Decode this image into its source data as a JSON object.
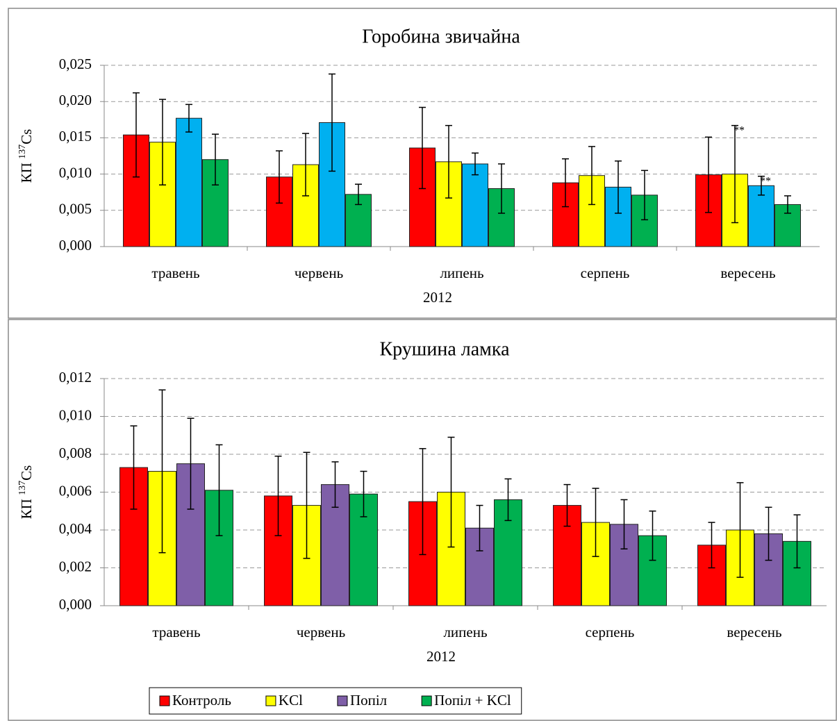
{
  "chart_data": [
    {
      "type": "bar",
      "title": "Горобина звичайна",
      "y_label_parts": [
        "КП ",
        "137",
        "Cs"
      ],
      "x_label": "2012",
      "categories": [
        "травень",
        "червень",
        "липень",
        "серпень",
        "вересень"
      ],
      "series": [
        {
          "color": "#ff0000",
          "values": [
            0.0154,
            0.0096,
            0.0136,
            0.0088,
            0.0099
          ],
          "errors": [
            0.0058,
            0.0036,
            0.0056,
            0.0033,
            0.0052
          ]
        },
        {
          "color": "#ffff00",
          "values": [
            0.0144,
            0.0113,
            0.0117,
            0.0098,
            0.01
          ],
          "errors": [
            0.0059,
            0.0043,
            0.005,
            0.004,
            0.0067
          ]
        },
        {
          "color": "#00b0f0",
          "values": [
            0.0177,
            0.0171,
            0.0114,
            0.0082,
            0.0084
          ],
          "errors": [
            0.0019,
            0.0067,
            0.0015,
            0.0036,
            0.0013
          ]
        },
        {
          "color": "#00b050",
          "values": [
            0.012,
            0.0072,
            0.008,
            0.0071,
            0.0058
          ],
          "errors": [
            0.0035,
            0.0014,
            0.0034,
            0.0034,
            0.0012
          ]
        }
      ],
      "annotations": [
        {
          "text": "**",
          "category": 4,
          "series": 1
        },
        {
          "text": "**",
          "category": 4,
          "series": 2
        }
      ],
      "ylim": [
        0,
        0.025
      ],
      "yticks": [
        {
          "value": 0,
          "label": "0,000"
        },
        {
          "value": 0.005,
          "label": "0,005"
        },
        {
          "value": 0.01,
          "label": "0,010"
        },
        {
          "value": 0.015,
          "label": "0,015"
        },
        {
          "value": 0.02,
          "label": "0,020"
        },
        {
          "value": 0.025,
          "label": "0,025"
        }
      ],
      "grid": true
    },
    {
      "type": "bar",
      "title": "Крушина ламка",
      "y_label_parts": [
        "КП ",
        "137",
        "Cs"
      ],
      "x_label": "2012",
      "categories": [
        "травень",
        "червень",
        "липень",
        "серпень",
        "вересень"
      ],
      "series": [
        {
          "name": "Контроль",
          "color": "#ff0000",
          "values": [
            0.0073,
            0.0058,
            0.0055,
            0.0053,
            0.0032
          ],
          "errors": [
            0.0022,
            0.0021,
            0.0028,
            0.0011,
            0.0012
          ]
        },
        {
          "name": "KCl",
          "color": "#ffff00",
          "values": [
            0.0071,
            0.0053,
            0.006,
            0.0044,
            0.004
          ],
          "errors": [
            0.0043,
            0.0028,
            0.0029,
            0.0018,
            0.0025
          ]
        },
        {
          "name": "Попіл",
          "color": "#7f5fa8",
          "values": [
            0.0075,
            0.0064,
            0.0041,
            0.0043,
            0.0038
          ],
          "errors": [
            0.0024,
            0.0012,
            0.0012,
            0.0013,
            0.0014
          ]
        },
        {
          "name": "Попіл + KCl",
          "color": "#00b050",
          "values": [
            0.0061,
            0.0059,
            0.0056,
            0.0037,
            0.0034
          ],
          "errors": [
            0.0024,
            0.0012,
            0.0011,
            0.0013,
            0.0014
          ]
        }
      ],
      "ylim": [
        0,
        0.012
      ],
      "yticks": [
        {
          "value": 0,
          "label": "0,000"
        },
        {
          "value": 0.002,
          "label": "0,002"
        },
        {
          "value": 0.004,
          "label": "0,004"
        },
        {
          "value": 0.006,
          "label": "0,006"
        },
        {
          "value": 0.008,
          "label": "0,008"
        },
        {
          "value": 0.01,
          "label": "0,010"
        },
        {
          "value": 0.012,
          "label": "0,012"
        }
      ],
      "grid": true,
      "legend": "bottom"
    }
  ]
}
